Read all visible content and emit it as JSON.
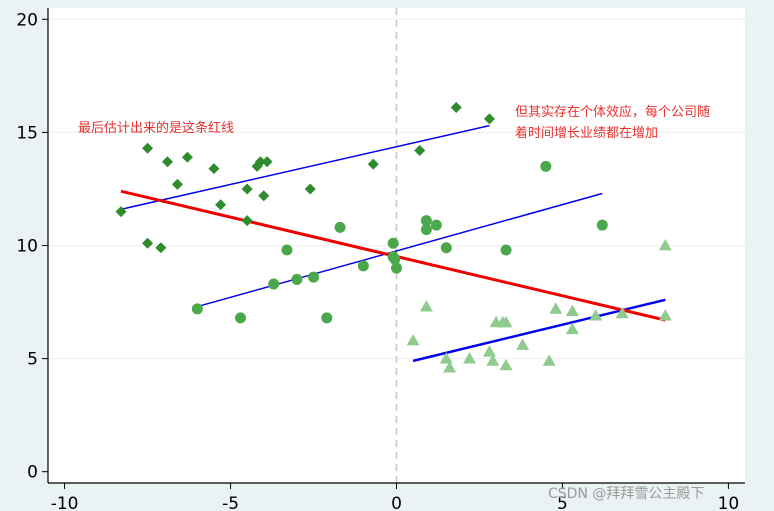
{
  "chart_data": {
    "type": "scatter",
    "xlim": [
      -10.5,
      10.5
    ],
    "ylim": [
      -0.5,
      20.5
    ],
    "x_ticks": [
      -10,
      -5,
      0,
      5,
      10
    ],
    "y_ticks": [
      0,
      5,
      10,
      15,
      20
    ],
    "x_tick_labels": [
      "-10",
      "-5",
      "0",
      "5",
      "10"
    ],
    "y_tick_labels": [
      "0",
      "5",
      "10",
      "15",
      "20"
    ],
    "grid": true,
    "vline_x": 0,
    "series": [
      {
        "marker": "diamond",
        "color": "#2e8b2e",
        "points": [
          [
            -8.3,
            11.5
          ],
          [
            -7.5,
            14.3
          ],
          [
            -7.5,
            10.1
          ],
          [
            -7.1,
            9.9
          ],
          [
            -6.9,
            13.7
          ],
          [
            -6.6,
            12.7
          ],
          [
            -6.3,
            13.9
          ],
          [
            -5.5,
            13.4
          ],
          [
            -5.3,
            11.8
          ],
          [
            -4.5,
            12.5
          ],
          [
            -4.5,
            11.1
          ],
          [
            -4.2,
            13.5
          ],
          [
            -4.1,
            13.7
          ],
          [
            -4.0,
            12.2
          ],
          [
            -3.9,
            13.7
          ],
          [
            -2.6,
            12.5
          ],
          [
            -0.7,
            13.6
          ],
          [
            0.7,
            14.2
          ],
          [
            1.8,
            16.1
          ],
          [
            2.8,
            15.6
          ]
        ]
      },
      {
        "marker": "circle",
        "color": "#4aa84a",
        "points": [
          [
            -6.0,
            7.2
          ],
          [
            -4.7,
            6.8
          ],
          [
            -3.7,
            8.3
          ],
          [
            -3.3,
            9.8
          ],
          [
            -3.0,
            8.5
          ],
          [
            -2.5,
            8.6
          ],
          [
            -2.1,
            6.8
          ],
          [
            -1.7,
            10.8
          ],
          [
            -1.0,
            9.1
          ],
          [
            -0.1,
            9.5
          ],
          [
            -0.05,
            9.4
          ],
          [
            -0.1,
            10.1
          ],
          [
            0.0,
            9.0
          ],
          [
            0.9,
            11.1
          ],
          [
            0.9,
            10.7
          ],
          [
            1.2,
            10.9
          ],
          [
            1.5,
            9.9
          ],
          [
            3.3,
            9.8
          ],
          [
            4.5,
            13.5
          ],
          [
            6.2,
            10.9
          ]
        ]
      },
      {
        "marker": "triangle",
        "color": "#8fcb8f",
        "points": [
          [
            0.5,
            5.8
          ],
          [
            0.9,
            7.3
          ],
          [
            1.5,
            5.0
          ],
          [
            1.6,
            4.6
          ],
          [
            2.2,
            5.0
          ],
          [
            2.8,
            5.3
          ],
          [
            2.9,
            4.9
          ],
          [
            3.0,
            6.6
          ],
          [
            3.2,
            6.6
          ],
          [
            3.3,
            6.6
          ],
          [
            3.3,
            4.7
          ],
          [
            3.8,
            5.6
          ],
          [
            4.6,
            4.9
          ],
          [
            4.8,
            7.2
          ],
          [
            5.3,
            7.1
          ],
          [
            5.3,
            6.3
          ],
          [
            6.0,
            6.9
          ],
          [
            6.8,
            7.0
          ],
          [
            8.1,
            10.0
          ],
          [
            8.1,
            6.9
          ]
        ]
      }
    ],
    "lines": [
      {
        "color": "#0000ee",
        "width": 1.5,
        "from": [
          -8.3,
          11.6
        ],
        "to": [
          2.8,
          15.3
        ]
      },
      {
        "color": "#0000ee",
        "width": 1.5,
        "from": [
          -6.0,
          7.3
        ],
        "to": [
          6.2,
          12.3
        ]
      },
      {
        "color": "#0000ee",
        "width": 2.5,
        "from": [
          0.5,
          4.9
        ],
        "to": [
          8.1,
          7.6
        ]
      },
      {
        "color": "#ee0000",
        "width": 3,
        "from": [
          -8.3,
          12.4
        ],
        "to": [
          8.1,
          6.7
        ]
      }
    ],
    "annotations": [
      {
        "lines": [
          "最后估计出来的是这条红线"
        ]
      },
      {
        "lines": [
          "但其实存在个体效应，每个公司随",
          "着时间增长业绩都在增加"
        ]
      }
    ]
  },
  "watermark": "CSDN @拜拜雪公主殿下"
}
